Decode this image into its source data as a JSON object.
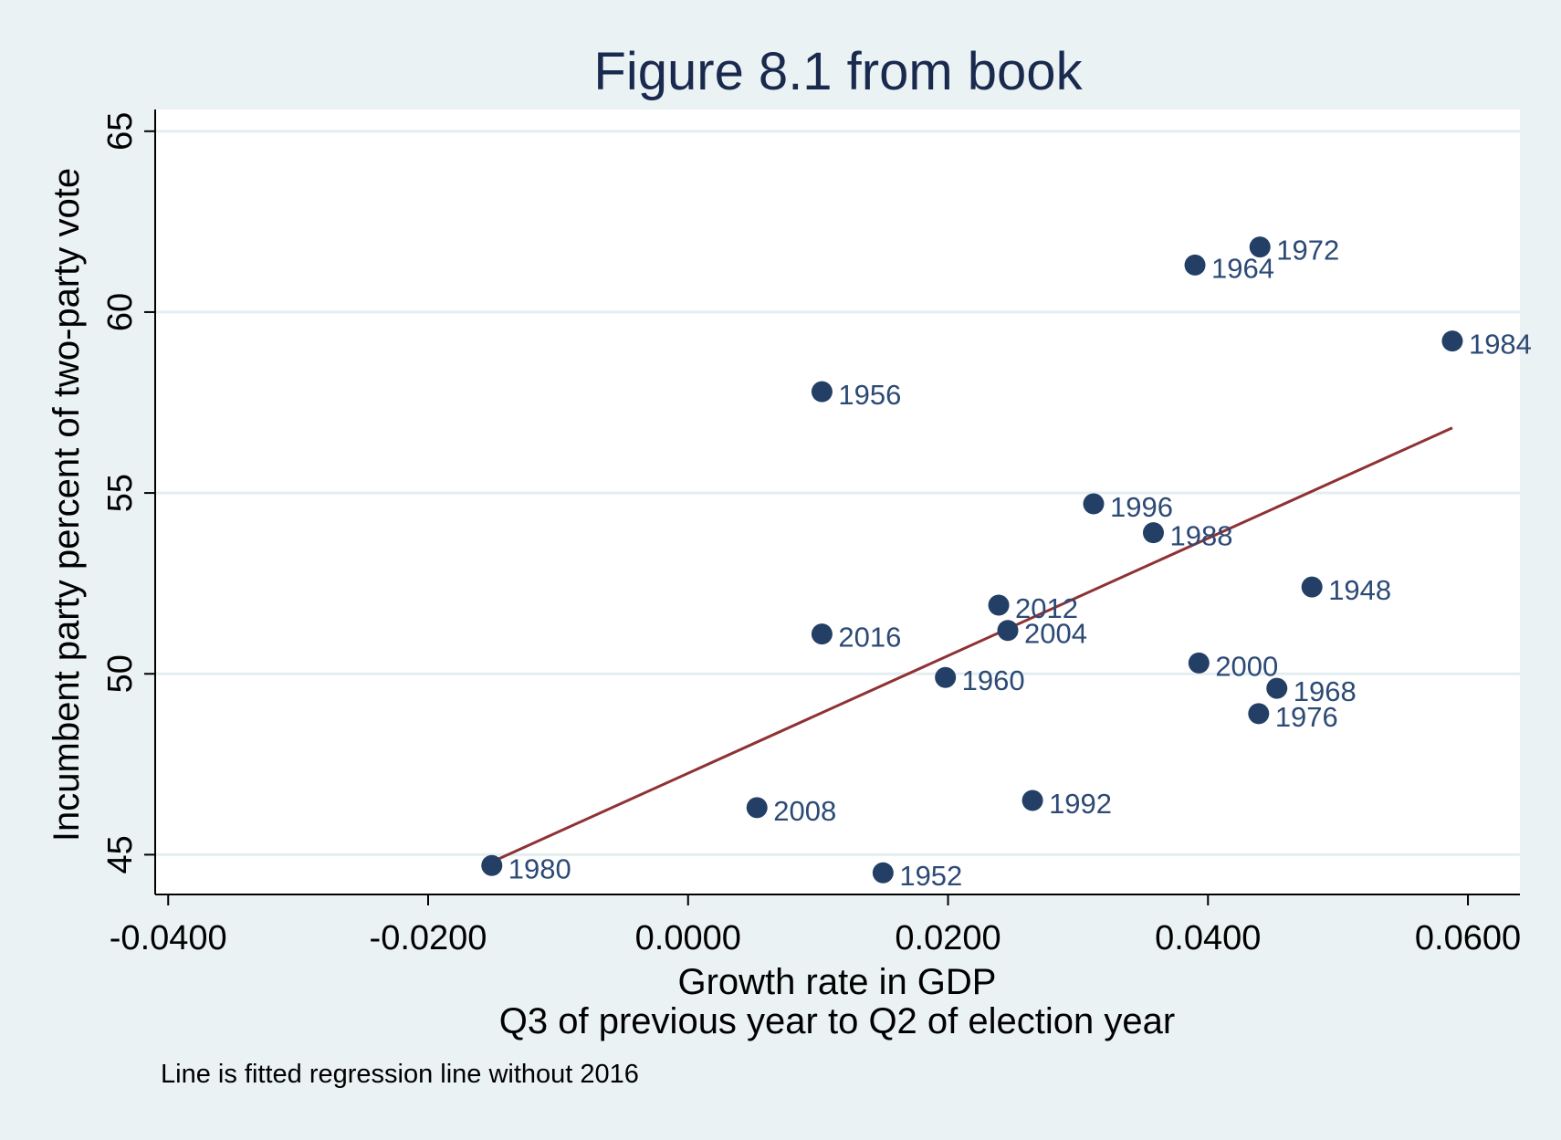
{
  "chart_data": {
    "type": "scatter",
    "title": "Figure 8.1 from book",
    "xlabel": "Growth rate in GDP",
    "xlabel_line2": "Q3 of previous year to Q2 of election year",
    "ylabel": "Incumbent party percent of two-party vote",
    "note": "Line is fitted regression line without 2016",
    "xlim": [
      -0.041,
      0.064
    ],
    "ylim": [
      43.9,
      65.6
    ],
    "xticks": [
      -0.04,
      -0.02,
      0.0,
      0.02,
      0.04,
      0.06
    ],
    "xtick_labels": [
      "-0.0400",
      "-0.0200",
      "0.0000",
      "0.0200",
      "0.0400",
      "0.0600"
    ],
    "yticks": [
      45,
      50,
      55,
      60,
      65
    ],
    "ytick_labels": [
      "45",
      "50",
      "55",
      "60",
      "65"
    ],
    "grid": true,
    "marker_color": "#233f66",
    "line_color": "#8e3234",
    "label_color": "#2c4a75",
    "background_color": "#eaf2f3",
    "plot_background_color": "#ffffff",
    "points": [
      {
        "label": "1948",
        "x": 0.048,
        "y": 52.4
      },
      {
        "label": "1952",
        "x": 0.015,
        "y": 44.5
      },
      {
        "label": "1956",
        "x": 0.0103,
        "y": 57.8
      },
      {
        "label": "1960",
        "x": 0.0198,
        "y": 49.9
      },
      {
        "label": "1964",
        "x": 0.039,
        "y": 61.3
      },
      {
        "label": "1968",
        "x": 0.0453,
        "y": 49.6
      },
      {
        "label": "1972",
        "x": 0.044,
        "y": 61.8
      },
      {
        "label": "1976",
        "x": 0.0439,
        "y": 48.9
      },
      {
        "label": "1980",
        "x": -0.0151,
        "y": 44.7
      },
      {
        "label": "1984",
        "x": 0.0588,
        "y": 59.2
      },
      {
        "label": "1988",
        "x": 0.0358,
        "y": 53.9
      },
      {
        "label": "1992",
        "x": 0.0265,
        "y": 46.5
      },
      {
        "label": "1996",
        "x": 0.0312,
        "y": 54.7
      },
      {
        "label": "2000",
        "x": 0.0393,
        "y": 50.3
      },
      {
        "label": "2004",
        "x": 0.0246,
        "y": 51.2
      },
      {
        "label": "2008",
        "x": 0.0053,
        "y": 46.3
      },
      {
        "label": "2012",
        "x": 0.0239,
        "y": 51.9
      },
      {
        "label": "2016",
        "x": 0.0103,
        "y": 51.1
      }
    ],
    "fit_line": {
      "x": [
        -0.0151,
        0.0588
      ],
      "y": [
        44.8,
        56.8
      ]
    }
  }
}
